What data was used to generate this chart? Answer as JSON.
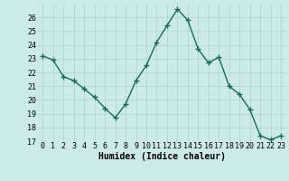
{
  "x": [
    0,
    1,
    2,
    3,
    4,
    5,
    6,
    7,
    8,
    9,
    10,
    11,
    12,
    13,
    14,
    15,
    16,
    17,
    18,
    19,
    20,
    21,
    22,
    23
  ],
  "y": [
    23.2,
    22.9,
    21.7,
    21.4,
    20.8,
    20.2,
    19.4,
    18.7,
    19.7,
    21.4,
    22.5,
    24.2,
    25.4,
    26.6,
    25.8,
    23.7,
    22.7,
    23.1,
    21.0,
    20.4,
    19.3,
    17.4,
    17.1,
    17.4
  ],
  "line_color": "#1a6b5a",
  "marker": "+",
  "marker_size": 4,
  "marker_linewidth": 1.0,
  "background_color": "#cceae8",
  "grid_color": "#b0d8d4",
  "xlabel": "Humidex (Indice chaleur)",
  "xlim": [
    -0.5,
    23.5
  ],
  "ylim": [
    17,
    27
  ],
  "yticks": [
    17,
    18,
    19,
    20,
    21,
    22,
    23,
    24,
    25,
    26
  ],
  "xticks": [
    0,
    1,
    2,
    3,
    4,
    5,
    6,
    7,
    8,
    9,
    10,
    11,
    12,
    13,
    14,
    15,
    16,
    17,
    18,
    19,
    20,
    21,
    22,
    23
  ],
  "xlabel_fontsize": 7,
  "tick_fontsize": 6,
  "line_width": 1.0
}
